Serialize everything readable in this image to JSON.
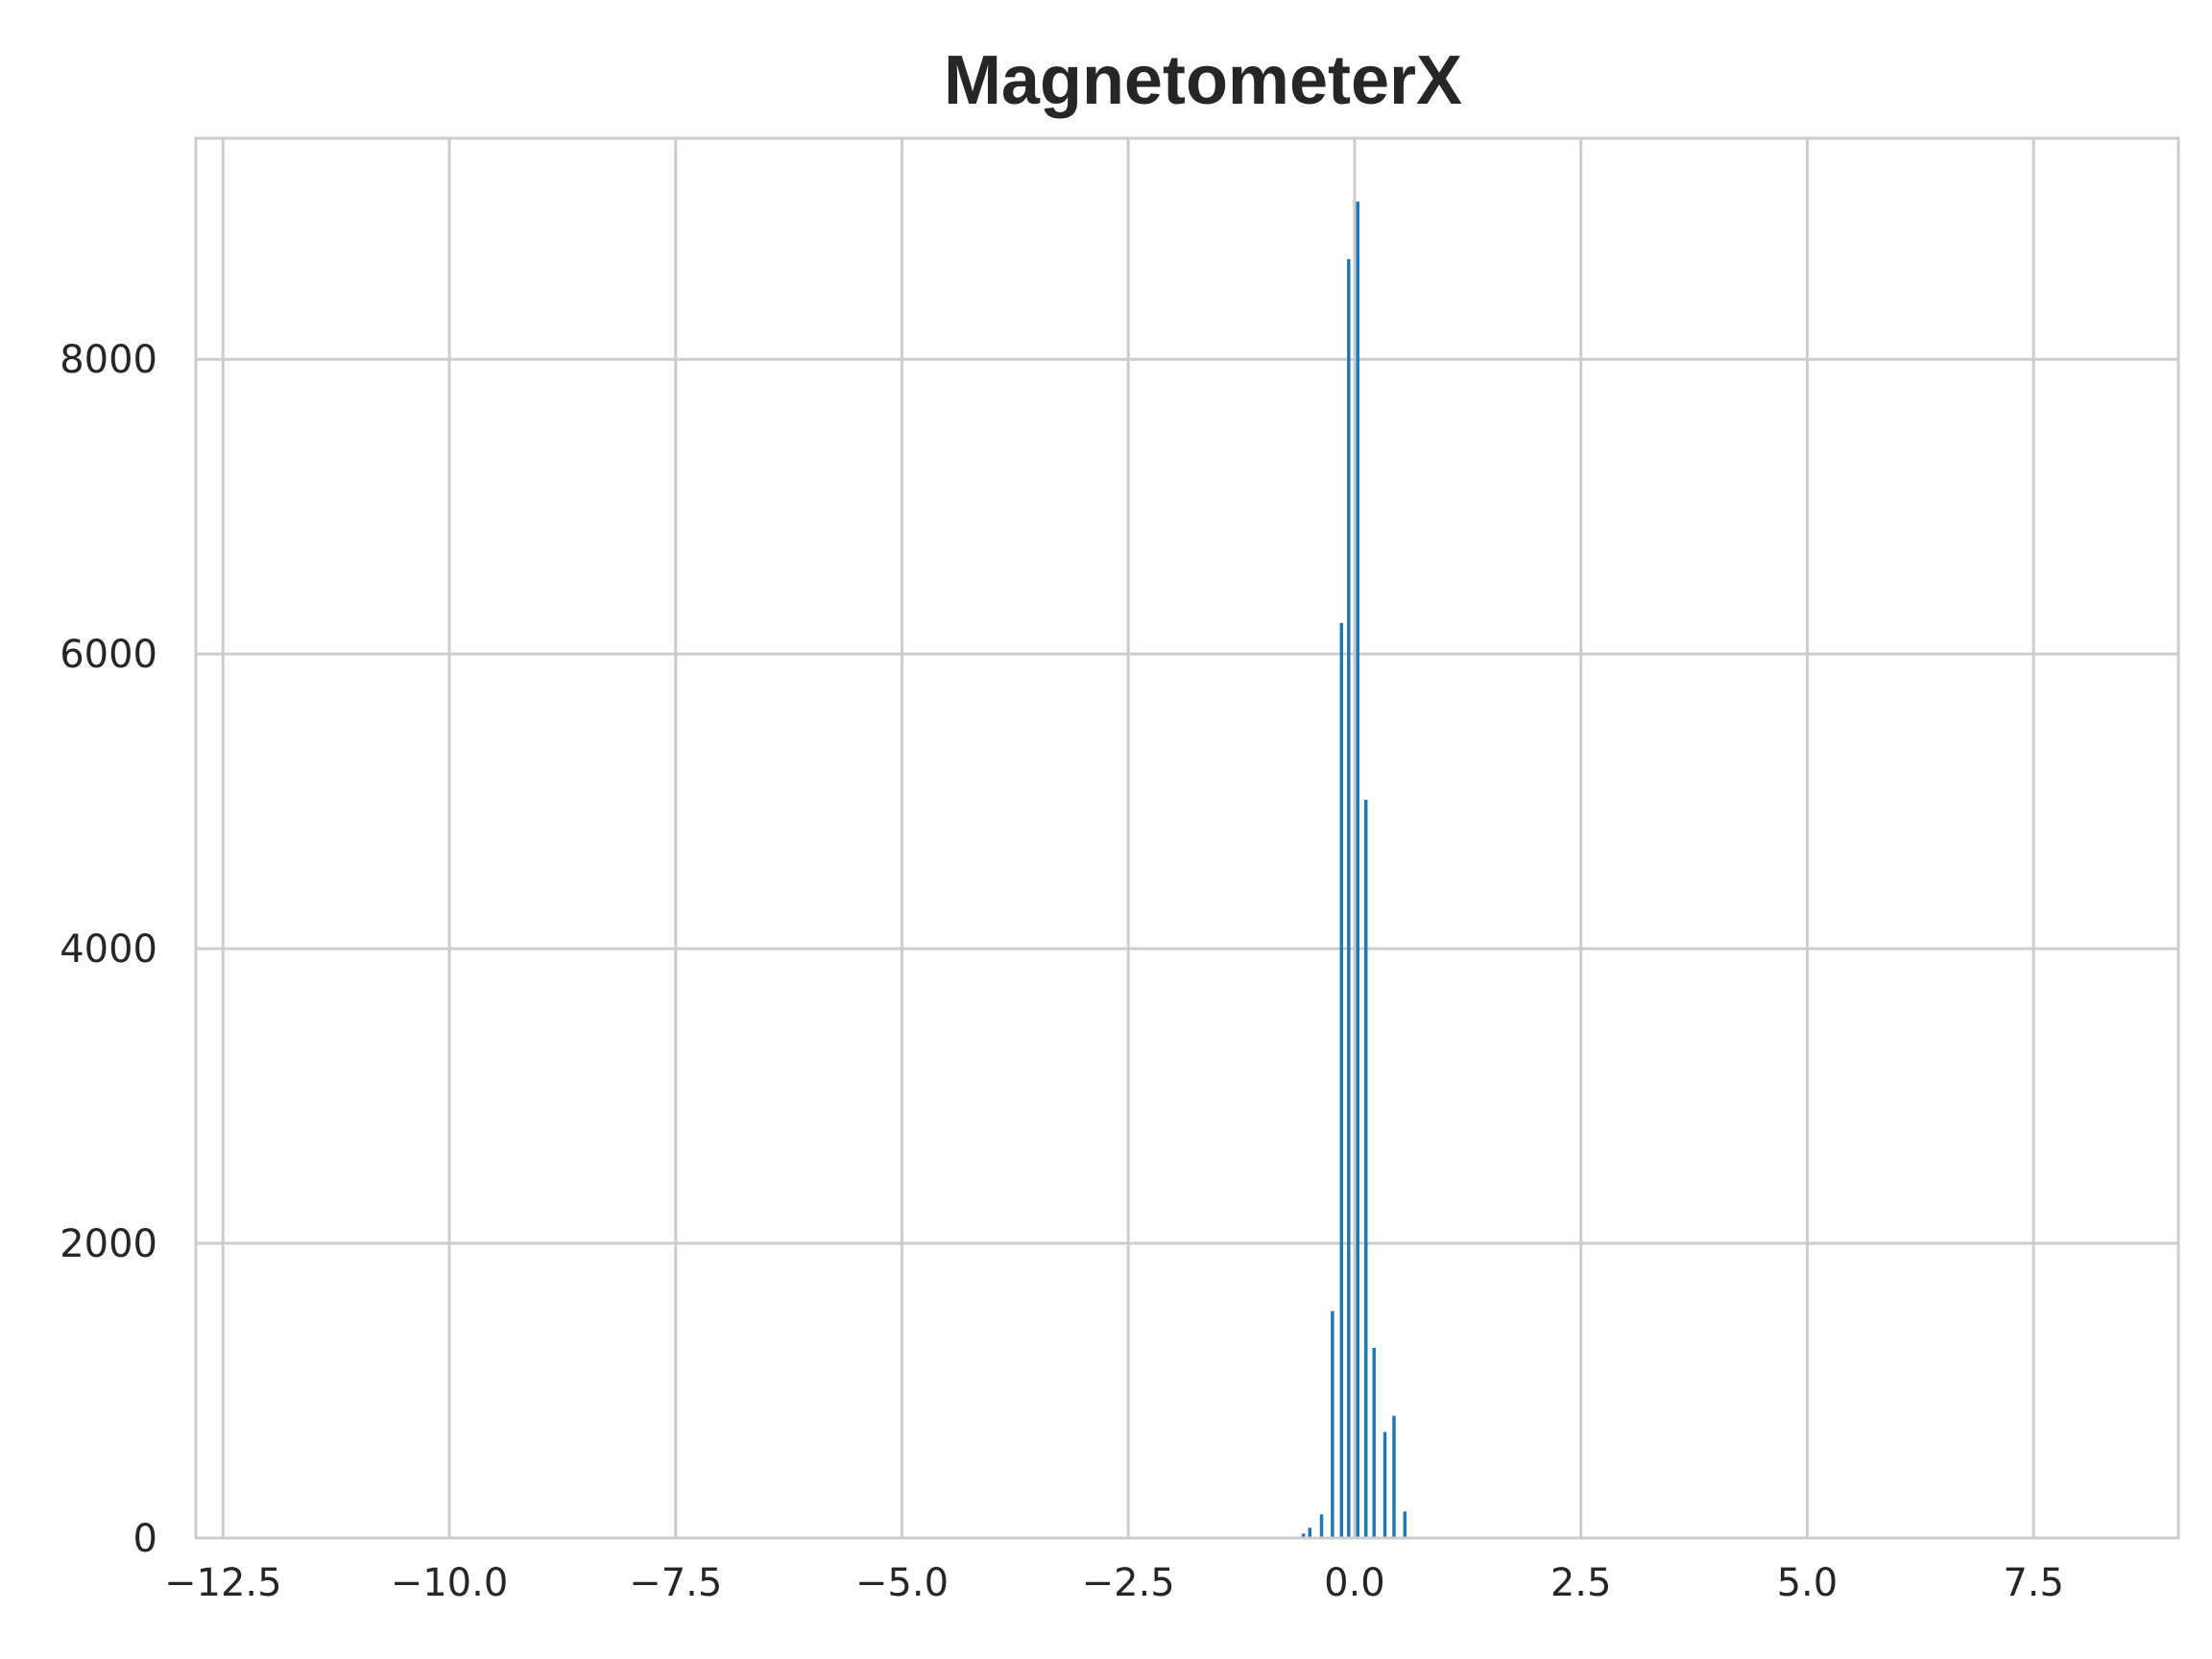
{
  "chart_data": {
    "type": "bar",
    "title": "MagnetometerX",
    "xlabel": "",
    "ylabel": "",
    "xlim": [
      -12.8,
      9.1
    ],
    "ylim": [
      0,
      9500
    ],
    "x_ticks": [
      -12.5,
      -10.0,
      -7.5,
      -5.0,
      -2.5,
      0.0,
      2.5,
      5.0,
      7.5
    ],
    "x_tick_labels": [
      "−12.5",
      "−10.0",
      "−7.5",
      "−5.0",
      "−2.5",
      "0.0",
      "2.5",
      "5.0",
      "7.5"
    ],
    "y_ticks": [
      0,
      2000,
      4000,
      6000,
      8000
    ],
    "y_tick_labels": [
      "0",
      "2000",
      "4000",
      "6000",
      "8000"
    ],
    "grid": true,
    "bar_color": "#1f77b4",
    "bin_width": 0.0667,
    "bins": [
      {
        "x": -0.55,
        "count": 30
      },
      {
        "x": -0.48,
        "count": 70
      },
      {
        "x": -0.35,
        "count": 160
      },
      {
        "x": -0.23,
        "count": 1540
      },
      {
        "x": -0.13,
        "count": 6210
      },
      {
        "x": -0.05,
        "count": 8680
      },
      {
        "x": 0.05,
        "count": 9070
      },
      {
        "x": 0.14,
        "count": 5010
      },
      {
        "x": 0.23,
        "count": 1290
      },
      {
        "x": 0.35,
        "count": 720
      },
      {
        "x": 0.45,
        "count": 830
      },
      {
        "x": 0.57,
        "count": 180
      }
    ]
  }
}
